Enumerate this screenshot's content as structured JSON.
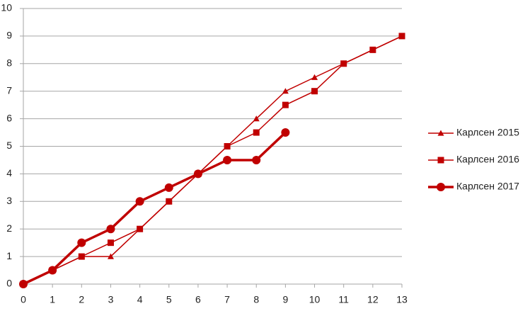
{
  "chart_data": {
    "type": "line",
    "x": [
      0,
      1,
      2,
      3,
      4,
      5,
      6,
      7,
      8,
      9,
      10,
      11,
      12,
      13
    ],
    "series": [
      {
        "name": "Карлсен 2015",
        "color": "#c00000",
        "marker": "triangle",
        "values": [
          0,
          0.5,
          1,
          1,
          2,
          3,
          4,
          5,
          6,
          7,
          7.5,
          8,
          8.5,
          9
        ]
      },
      {
        "name": "Карлсен 2016",
        "color": "#c00000",
        "marker": "square",
        "values": [
          0,
          0.5,
          1,
          1.5,
          2,
          3,
          4,
          5,
          5.5,
          6.5,
          7,
          8,
          8.5,
          9
        ]
      },
      {
        "name": "Карлсен 2017",
        "color": "#c00000",
        "marker": "circle",
        "values": [
          0,
          0.5,
          1.5,
          2,
          3,
          3.5,
          4,
          4.5,
          4.5,
          5.5,
          null,
          null,
          null,
          null
        ]
      }
    ],
    "xlim": [
      0,
      13
    ],
    "xticks": [
      0,
      1,
      2,
      3,
      4,
      5,
      6,
      7,
      8,
      9,
      10,
      11,
      12,
      13
    ],
    "ylim": [
      0,
      10
    ],
    "yticks": [
      0,
      1,
      2,
      3,
      4,
      5,
      6,
      7,
      8,
      9,
      10
    ],
    "grid": true,
    "legend": "right"
  }
}
